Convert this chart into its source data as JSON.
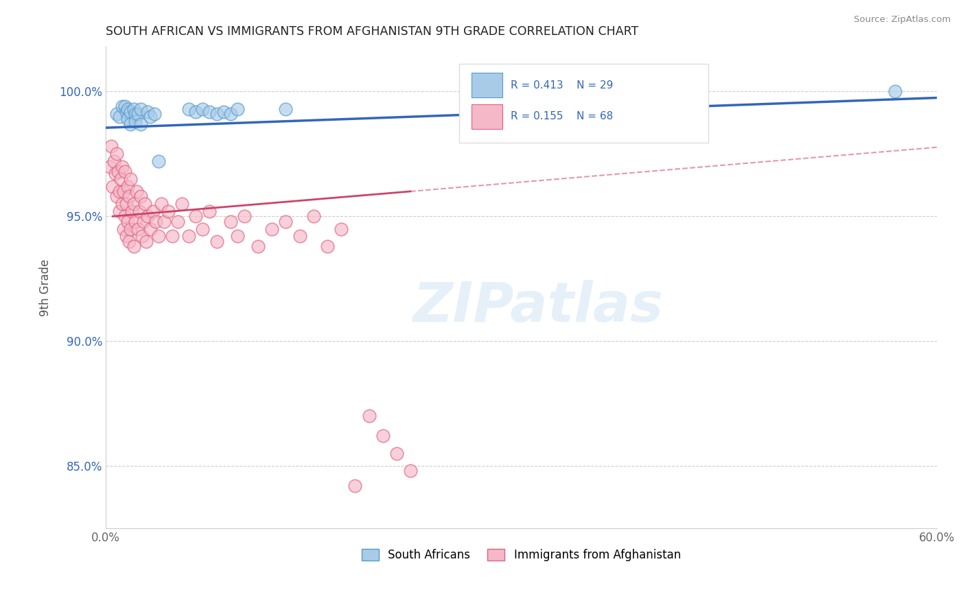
{
  "title": "SOUTH AFRICAN VS IMMIGRANTS FROM AFGHANISTAN 9TH GRADE CORRELATION CHART",
  "source": "Source: ZipAtlas.com",
  "ylabel": "9th Grade",
  "xlim": [
    0.0,
    0.6
  ],
  "ylim": [
    0.825,
    1.018
  ],
  "xticks": [
    0.0,
    0.1,
    0.2,
    0.3,
    0.4,
    0.5,
    0.6
  ],
  "xticklabels": [
    "0.0%",
    "",
    "",
    "",
    "",
    "",
    "60.0%"
  ],
  "yticks": [
    0.85,
    0.9,
    0.95,
    1.0
  ],
  "yticklabels": [
    "85.0%",
    "90.0%",
    "95.0%",
    "100.0%"
  ],
  "legend_labels": [
    "South Africans",
    "Immigrants from Afghanistan"
  ],
  "legend_r_values": [
    "R = 0.413",
    "R = 0.155"
  ],
  "legend_n_values": [
    "N = 29",
    "N = 68"
  ],
  "blue_color": "#a8cce8",
  "pink_color": "#f5b8c8",
  "blue_edge_color": "#5599cc",
  "pink_edge_color": "#e06080",
  "blue_line_color": "#3366bb",
  "pink_line_color": "#cc4466",
  "title_color": "#333333",
  "legend_text_color": "#3366bb",
  "watermark_color": "#ddeeff",
  "background_color": "#ffffff",
  "south_africans_x": [
    0.008,
    0.01,
    0.012,
    0.014,
    0.015,
    0.016,
    0.016,
    0.018,
    0.018,
    0.02,
    0.021,
    0.021,
    0.023,
    0.025,
    0.025,
    0.03,
    0.032,
    0.035,
    0.038,
    0.06,
    0.065,
    0.07,
    0.075,
    0.08,
    0.085,
    0.09,
    0.095,
    0.13,
    0.57
  ],
  "south_africans_y": [
    0.991,
    0.99,
    0.994,
    0.994,
    0.992,
    0.993,
    0.989,
    0.992,
    0.987,
    0.993,
    0.991,
    0.988,
    0.991,
    0.993,
    0.987,
    0.992,
    0.99,
    0.991,
    0.972,
    0.993,
    0.992,
    0.993,
    0.992,
    0.991,
    0.992,
    0.991,
    0.993,
    0.993,
    1.0
  ],
  "afghanistan_x": [
    0.003,
    0.004,
    0.005,
    0.006,
    0.007,
    0.008,
    0.008,
    0.009,
    0.01,
    0.01,
    0.011,
    0.012,
    0.012,
    0.013,
    0.013,
    0.014,
    0.014,
    0.015,
    0.015,
    0.016,
    0.016,
    0.017,
    0.017,
    0.018,
    0.018,
    0.019,
    0.02,
    0.02,
    0.021,
    0.022,
    0.023,
    0.024,
    0.025,
    0.026,
    0.027,
    0.028,
    0.029,
    0.03,
    0.032,
    0.034,
    0.036,
    0.038,
    0.04,
    0.042,
    0.045,
    0.048,
    0.052,
    0.055,
    0.06,
    0.065,
    0.07,
    0.075,
    0.08,
    0.09,
    0.095,
    0.1,
    0.11,
    0.12,
    0.13,
    0.14,
    0.15,
    0.16,
    0.17,
    0.18,
    0.19,
    0.2,
    0.21,
    0.22
  ],
  "afghanistan_y": [
    0.97,
    0.978,
    0.962,
    0.972,
    0.967,
    0.975,
    0.958,
    0.968,
    0.96,
    0.952,
    0.965,
    0.97,
    0.955,
    0.96,
    0.945,
    0.968,
    0.95,
    0.955,
    0.942,
    0.962,
    0.948,
    0.958,
    0.94,
    0.965,
    0.945,
    0.952,
    0.955,
    0.938,
    0.948,
    0.96,
    0.945,
    0.952,
    0.958,
    0.942,
    0.948,
    0.955,
    0.94,
    0.95,
    0.945,
    0.952,
    0.948,
    0.942,
    0.955,
    0.948,
    0.952,
    0.942,
    0.948,
    0.955,
    0.942,
    0.95,
    0.945,
    0.952,
    0.94,
    0.948,
    0.942,
    0.95,
    0.938,
    0.945,
    0.948,
    0.942,
    0.95,
    0.938,
    0.945,
    0.842,
    0.87,
    0.862,
    0.855,
    0.848
  ]
}
